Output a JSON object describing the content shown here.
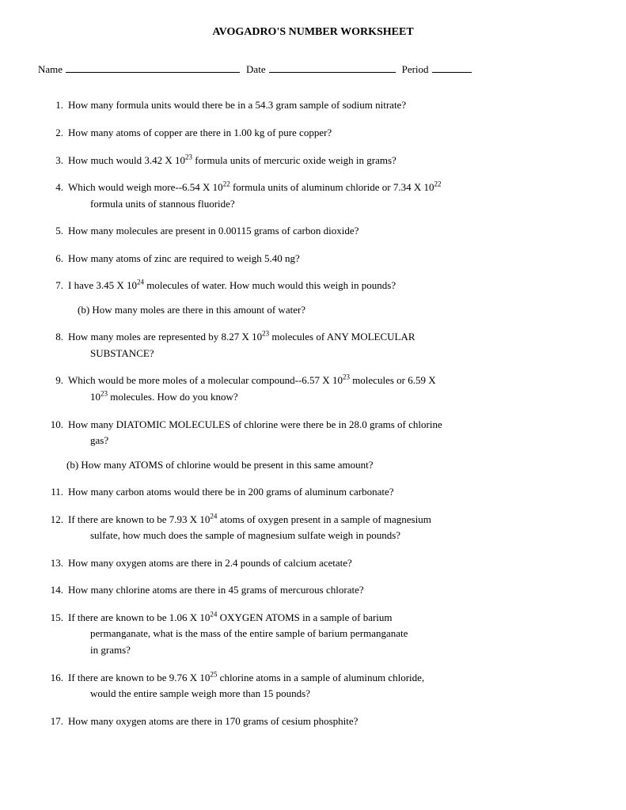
{
  "title": "AVOGADRO'S NUMBER WORKSHEET",
  "header": {
    "name_label": "Name",
    "date_label": "Date",
    "period_label": "Period"
  },
  "questions": [
    {
      "n": "1.",
      "lines": [
        "How many formula units would there be in a 54.3 gram sample of sodium nitrate?"
      ]
    },
    {
      "n": "2.",
      "lines": [
        "How many atoms of copper are there in 1.00 kg of pure copper?"
      ]
    },
    {
      "n": "3.",
      "lines": [
        "How much would 3.42 X 10^{23} formula units of mercuric oxide weigh in grams?"
      ]
    },
    {
      "n": "4.",
      "lines": [
        "Which would weigh more--6.54 X 10^{22} formula units of aluminum chloride or 7.34 X 10^{22}",
        "formula units of stannous fluoride?"
      ]
    },
    {
      "n": "5.",
      "lines": [
        "How many molecules are present in 0.00115 grams of carbon dioxide?"
      ]
    },
    {
      "n": "6.",
      "lines": [
        "How many atoms of zinc are required to weigh 5.40 ng?"
      ]
    },
    {
      "n": "7.",
      "lines": [
        "I have 3.45 X 10^{24} molecules of water.  How much would this weigh in pounds?"
      ],
      "sub": "(b)  How many moles are there in this amount of water?"
    },
    {
      "n": "8.",
      "lines": [
        "How many moles are represented by 8.27 X 10^{23} molecules of ANY MOLECULAR",
        "SUBSTANCE?"
      ]
    },
    {
      "n": "9.",
      "lines": [
        "Which would be more moles of a molecular compound--6.57 X 10^{23} molecules or 6.59 X",
        "10^{23}  molecules.  How do you know?"
      ]
    },
    {
      "n": "10.",
      "lines": [
        "How many DIATOMIC MOLECULES of chlorine were there be in 28.0 grams of chlorine",
        "gas?"
      ],
      "sub": "(b)  How many ATOMS of chlorine would be present in this same amount?",
      "sub_indent": "26px"
    },
    {
      "n": "11.",
      "lines": [
        "How many carbon atoms would there be in 200 grams of aluminum carbonate?"
      ]
    },
    {
      "n": "12.",
      "lines": [
        "If there are known to be 7.93 X 10^{24} atoms of oxygen present in a sample of magnesium",
        "sulfate, how much does the sample of magnesium sulfate weigh in pounds?"
      ]
    },
    {
      "n": "13.",
      "lines": [
        "How many oxygen atoms are there in 2.4 pounds of calcium acetate?"
      ]
    },
    {
      "n": "14.",
      "lines": [
        "How many chlorine atoms are there in 45 grams of mercurous chlorate?"
      ]
    },
    {
      "n": "15.",
      "lines": [
        "If there are known to be 1.06 X 10^{24} OXYGEN ATOMS in a sample of barium",
        "permanganate, what is the mass of the entire sample of barium permanganate",
        "in grams?"
      ]
    },
    {
      "n": "16.",
      "lines": [
        "If there are known to be 9.76 X 10^{25} chlorine atoms in a sample of aluminum chloride,",
        "would the entire sample weigh more than 15 pounds?"
      ]
    },
    {
      "n": "17.",
      "lines": [
        "How many oxygen atoms are there in 170 grams of cesium phosphite?"
      ]
    }
  ]
}
